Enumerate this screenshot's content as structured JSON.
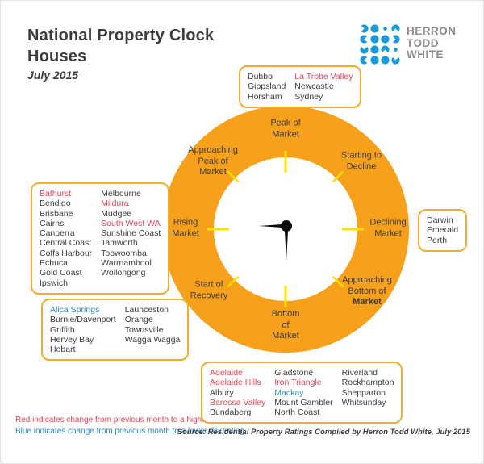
{
  "header": {
    "title_line1": "National Property Clock",
    "title_line2": "Houses",
    "date": "July 2015"
  },
  "logo": {
    "line1": "HERRON",
    "line2": "TODD",
    "line3": "WHITE"
  },
  "colors": {
    "clock-orange": "#F7A01B",
    "tick-yellow": "#FFE000",
    "box-border": "#F1AC2C",
    "risk-red": "#E84356",
    "risk-blue": "#2E86C8",
    "logo-blue": "#1A9AD7",
    "logo-gray": "#8A8C8F",
    "text-dark": "#3C3C3C"
  },
  "clock": {
    "phases": {
      "peak": [
        {
          "t": "Peak of"
        },
        {
          "t": "Market"
        }
      ],
      "approaching_peak": [
        {
          "t": "Approaching"
        },
        {
          "t": "Peak of"
        },
        {
          "t": "Market"
        }
      ],
      "starting_to_decline": [
        {
          "t": "Starting to"
        },
        {
          "t": "Decline"
        }
      ],
      "rising": [
        {
          "t": "Rising"
        },
        {
          "t": "Market"
        }
      ],
      "declining": [
        {
          "t": "Declining"
        },
        {
          "t": "Market"
        }
      ],
      "start_of_recovery": [
        {
          "t": "Start of"
        },
        {
          "t": "Recovery"
        }
      ],
      "approaching_bottom": [
        {
          "t": "Approaching"
        },
        {
          "t": "Bottom of"
        },
        {
          "t": "Market",
          "bold": true
        }
      ],
      "bottom": [
        {
          "t": "Bottom"
        },
        {
          "t": "of"
        },
        {
          "t": "Market"
        }
      ]
    }
  },
  "boxes": {
    "peak_box": {
      "columns": [
        [
          {
            "label": "Dubbo"
          },
          {
            "label": "Gippsland"
          },
          {
            "label": "Horsham"
          }
        ],
        [
          {
            "label": "La Trobe Valley",
            "color": "red"
          },
          {
            "label": "Newcastle"
          },
          {
            "label": "Sydney"
          }
        ]
      ]
    },
    "rising_box": {
      "columns": [
        [
          {
            "label": "Bathurst",
            "color": "red"
          },
          {
            "label": "Bendigo"
          },
          {
            "label": "Brisbane"
          },
          {
            "label": "Cairns"
          },
          {
            "label": "Canberra"
          },
          {
            "label": "Central Coast"
          },
          {
            "label": "Coffs Harbour"
          },
          {
            "label": "Echuca"
          },
          {
            "label": "Gold Coast"
          },
          {
            "label": "Ipswich"
          }
        ],
        [
          {
            "label": "Melbourne"
          },
          {
            "label": "Mildura",
            "color": "red"
          },
          {
            "label": "Mudgee"
          },
          {
            "label": "South West WA",
            "color": "red"
          },
          {
            "label": "Sunshine Coast"
          },
          {
            "label": "Tamworth"
          },
          {
            "label": "Toowoomba"
          },
          {
            "label": "Warrnambool"
          },
          {
            "label": "Wollongong"
          }
        ]
      ]
    },
    "declining_box": {
      "columns": [
        [
          {
            "label": "Darwin"
          },
          {
            "label": "Emerald"
          },
          {
            "label": "Perth"
          }
        ]
      ]
    },
    "recovery_box": {
      "columns": [
        [
          {
            "label": "Alica Springs",
            "color": "blue"
          },
          {
            "label": "Burnie/Davenport"
          },
          {
            "label": "Griffith"
          },
          {
            "label": "Hervey Bay"
          },
          {
            "label": "Hobart"
          }
        ],
        [
          {
            "label": "Launceston"
          },
          {
            "label": "Orange"
          },
          {
            "label": "Townsville"
          },
          {
            "label": "Wagga Wagga"
          }
        ]
      ]
    },
    "bottom_box": {
      "columns": [
        [
          {
            "label": "Adelaide",
            "color": "red"
          },
          {
            "label": "Adelaide Hills",
            "color": "red"
          },
          {
            "label": "Albury"
          },
          {
            "label": "Barossa Valley",
            "color": "red"
          },
          {
            "label": "Bundaberg"
          }
        ],
        [
          {
            "label": "Gladstone"
          },
          {
            "label": "Iron Triangle",
            "color": "red"
          },
          {
            "label": "Mackay",
            "color": "blue"
          },
          {
            "label": "Mount Gambler"
          },
          {
            "label": "North Coast"
          }
        ],
        [
          {
            "label": "Riverland"
          },
          {
            "label": "Rockhampton"
          },
          {
            "label": "Shepparton"
          },
          {
            "label": "Whitsunday"
          }
        ]
      ]
    }
  },
  "footer": {
    "red_note": "Red indicates change from previous month to a higher risk rating",
    "blue_note": "Blue indicates change from previous month to a lower risk rating",
    "source": "Source: Residential Property Ratings Compiled by Herron Todd White, July 2015"
  }
}
